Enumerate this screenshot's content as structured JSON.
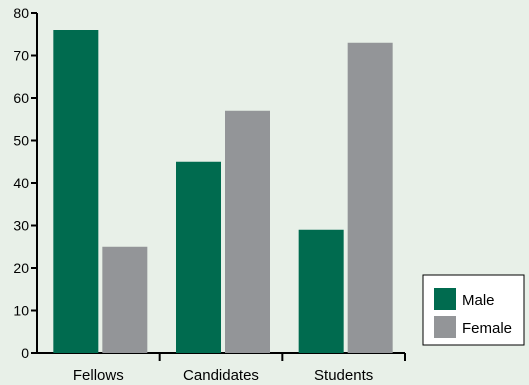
{
  "chart_data": {
    "type": "bar",
    "categories": [
      "Fellows",
      "Candidates",
      "Students"
    ],
    "series": [
      {
        "name": "Male",
        "values": [
          76,
          45,
          29
        ]
      },
      {
        "name": "Female",
        "values": [
          25,
          57,
          73
        ]
      }
    ],
    "ylim": [
      0,
      80
    ],
    "yticks": [
      0,
      10,
      20,
      30,
      40,
      50,
      60,
      70,
      80
    ],
    "title": "",
    "xlabel": "",
    "ylabel": "",
    "grid": false,
    "legend_position": "bottom-right"
  },
  "colors": {
    "background": "#e8f0e8",
    "male": "#006b4f",
    "female": "#939598",
    "axis": "#000000"
  }
}
